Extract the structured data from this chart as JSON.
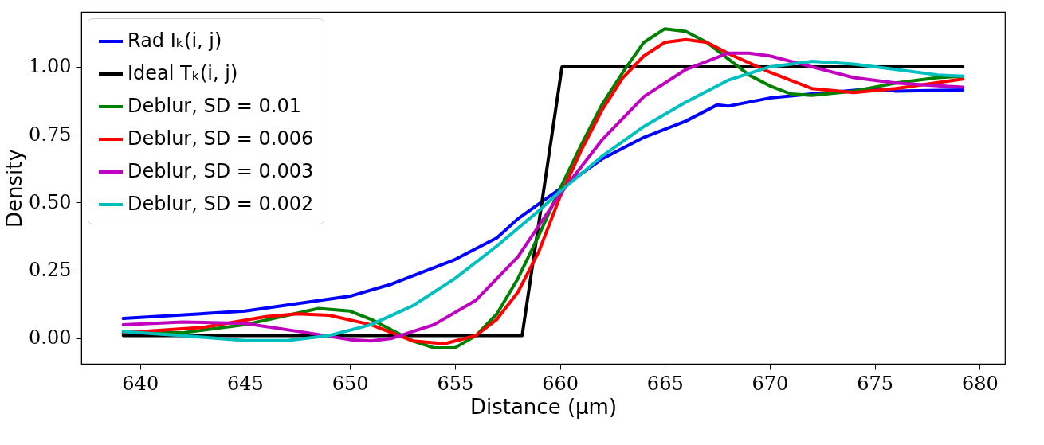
{
  "chart_data": {
    "type": "line",
    "xlabel": "Distance (μm)",
    "ylabel": "Density",
    "xlim": [
      637.2,
      681.2
    ],
    "ylim": [
      -0.094,
      1.202
    ],
    "xticks": [
      640,
      645,
      650,
      655,
      660,
      665,
      670,
      675,
      680
    ],
    "yticks": [
      {
        "value": 0,
        "label": "0.00"
      },
      {
        "value": 0.25,
        "label": "0.25"
      },
      {
        "value": 0.5,
        "label": "0.50"
      },
      {
        "value": 0.75,
        "label": "0.75"
      },
      {
        "value": 1,
        "label": "1.00"
      }
    ],
    "grid": false,
    "legend": "top left",
    "line_style": "solid",
    "series": [
      {
        "name": "Rad Iₖ(i, j)",
        "color": "#0000ff",
        "x": [
          639.2,
          645,
          650,
          652,
          655,
          657,
          658,
          660,
          662,
          664,
          666,
          667.5,
          668,
          670,
          672,
          675,
          676,
          679.2
        ],
        "values": [
          0.073,
          0.1,
          0.155,
          0.2,
          0.29,
          0.37,
          0.44,
          0.55,
          0.66,
          0.74,
          0.8,
          0.86,
          0.855,
          0.885,
          0.9,
          0.92,
          0.91,
          0.915
        ]
      },
      {
        "name": "Ideal Tₖ(i, j)",
        "color": "#000000",
        "x": [
          639.2,
          658.2,
          660.1,
          679.2
        ],
        "values": [
          0.01,
          0.01,
          1.0,
          1.0
        ]
      },
      {
        "name": "Deblur, SD = 0.01",
        "color": "#008000",
        "x": [
          639.2,
          642,
          645,
          648.5,
          650,
          651,
          652,
          653,
          654,
          655,
          656,
          657,
          658,
          659,
          660,
          661,
          662,
          663,
          664,
          665,
          666,
          667,
          668,
          669,
          670,
          671,
          672,
          674,
          676,
          678,
          679.2
        ],
        "values": [
          0.02,
          0.02,
          0.05,
          0.11,
          0.1,
          0.07,
          0.03,
          -0.01,
          -0.035,
          -0.035,
          0.01,
          0.09,
          0.22,
          0.38,
          0.55,
          0.71,
          0.86,
          0.98,
          1.09,
          1.14,
          1.13,
          1.09,
          1.03,
          0.97,
          0.93,
          0.9,
          0.895,
          0.91,
          0.94,
          0.96,
          0.965
        ]
      },
      {
        "name": "Deblur, SD = 0.006",
        "color": "#ff0000",
        "x": [
          639.2,
          643,
          646,
          647.5,
          649,
          651,
          653,
          654.5,
          656,
          657,
          658,
          659,
          660,
          661,
          662,
          663,
          664,
          665,
          666,
          667,
          668,
          670,
          672,
          674,
          676,
          679.2
        ],
        "values": [
          0.02,
          0.04,
          0.08,
          0.09,
          0.085,
          0.05,
          -0.01,
          -0.02,
          0.01,
          0.07,
          0.17,
          0.32,
          0.52,
          0.69,
          0.84,
          0.96,
          1.04,
          1.09,
          1.1,
          1.09,
          1.05,
          0.98,
          0.92,
          0.905,
          0.92,
          0.955
        ]
      },
      {
        "name": "Deblur, SD = 0.003",
        "color": "#bf00bf",
        "x": [
          639.2,
          642,
          645,
          648,
          650,
          651,
          652,
          654,
          656,
          658,
          660,
          662,
          664,
          666,
          668,
          669,
          670,
          672,
          674,
          676,
          678,
          679.2
        ],
        "values": [
          0.05,
          0.06,
          0.055,
          0.02,
          -0.005,
          -0.01,
          0.0,
          0.05,
          0.14,
          0.3,
          0.53,
          0.73,
          0.89,
          0.99,
          1.05,
          1.05,
          1.04,
          1.0,
          0.96,
          0.94,
          0.93,
          0.925
        ]
      },
      {
        "name": "Deblur, SD = 0.002",
        "color": "#00bfbf",
        "x": [
          639.2,
          642,
          645,
          647,
          649,
          651,
          653,
          655,
          657,
          659,
          660,
          662,
          664,
          666,
          668,
          670,
          672,
          674,
          676,
          678,
          679.2
        ],
        "values": [
          0.025,
          0.01,
          -0.008,
          -0.008,
          0.01,
          0.05,
          0.12,
          0.22,
          0.34,
          0.47,
          0.54,
          0.67,
          0.78,
          0.87,
          0.95,
          1.0,
          1.02,
          1.01,
          0.99,
          0.97,
          0.965
        ]
      }
    ]
  }
}
